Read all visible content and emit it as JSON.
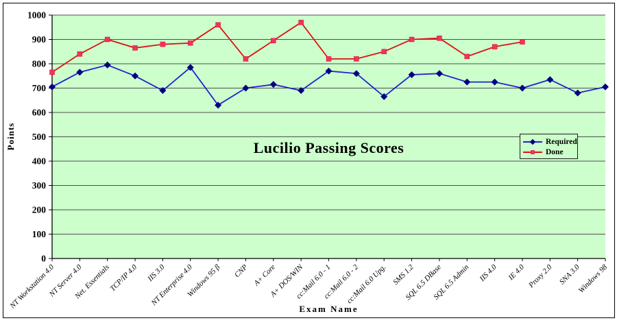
{
  "window": {
    "background": "#ffffff",
    "border_color": "#000000"
  },
  "chart_data": {
    "type": "line",
    "title": "Lucilio Passing Scores",
    "xlabel": "Exam Name",
    "ylabel": "Points",
    "ylim": [
      0,
      1000
    ],
    "yticks": [
      0,
      100,
      200,
      300,
      400,
      500,
      600,
      700,
      800,
      900,
      1000
    ],
    "grid": true,
    "plot_bg": "#ccffcc",
    "grid_color": "#4f4f4f",
    "axis_color": "#000000",
    "legend_position": "right-middle",
    "categories": [
      "NT Workstation 4.0",
      "NT Server 4.0",
      "Net. Essentials",
      "TCP/IP 4.0",
      "IIS 3.0",
      "NT Enterprise 4.0",
      "Windows 95 β",
      "CNP",
      "A+ Core",
      "A+ DOS/WIN",
      "cc:Mail 6.0 - 1",
      "cc:Mail 6.0 - 2",
      "cc:Mail 6.0 Upg.",
      "SMS 1.2",
      "SQL 6.5 DBase",
      "SQL 6.5 Admin",
      "IIS 4.0",
      "IE 4.0",
      "Proxy 2.0",
      "SNA 3.0",
      "Windows 98"
    ],
    "series": [
      {
        "name": "Required",
        "color": "#2222cc",
        "marker": "diamond",
        "marker_color": "#000080",
        "values": [
          705,
          765,
          795,
          750,
          690,
          785,
          630,
          700,
          715,
          690,
          770,
          760,
          665,
          755,
          760,
          725,
          725,
          700,
          735,
          680,
          705
        ]
      },
      {
        "name": "Done",
        "color": "#dd1111",
        "marker": "square",
        "marker_color": "#ee3366",
        "values": [
          765,
          840,
          900,
          865,
          880,
          885,
          960,
          820,
          895,
          970,
          820,
          820,
          850,
          900,
          905,
          830,
          870,
          890,
          null,
          null,
          null
        ]
      }
    ]
  }
}
